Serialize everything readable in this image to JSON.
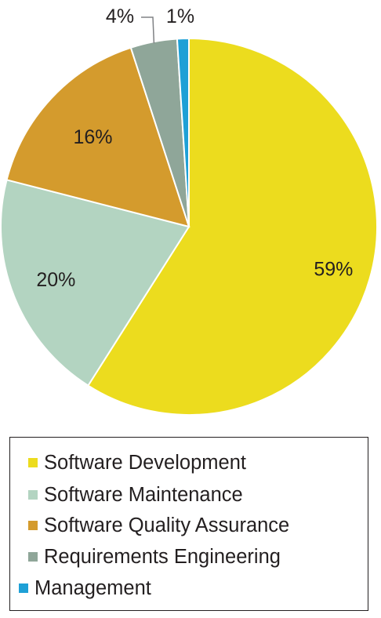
{
  "chart_data": {
    "type": "pie",
    "categories": [
      "Software Development",
      "Software Maintenance",
      "Software Quality Assurance",
      "Requirements Engineering",
      "Management"
    ],
    "values": [
      59,
      20,
      16,
      4,
      1
    ],
    "labels": [
      "59%",
      "20%",
      "16%",
      "4%",
      "1%"
    ],
    "colors": [
      "#ecdc1e",
      "#b3d4c1",
      "#d49b2d",
      "#8fa699",
      "#1ea0d6"
    ],
    "title": "",
    "legend_position": "bottom"
  }
}
